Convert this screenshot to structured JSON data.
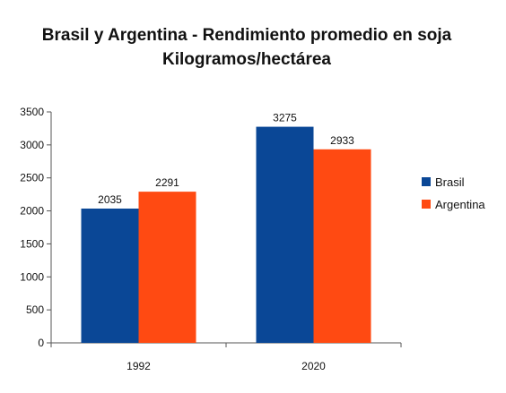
{
  "chart_data": {
    "type": "bar",
    "title": "Brasil y Argentina - Rendimiento promedio en soja",
    "subtitle": "Kilogramos/hectárea",
    "categories": [
      "1992",
      "2020"
    ],
    "series": [
      {
        "name": "Brasil",
        "color": "#0a4796",
        "values": [
          2035,
          3275
        ]
      },
      {
        "name": "Argentina",
        "color": "#ff4a12",
        "values": [
          2291,
          2933
        ]
      }
    ],
    "ylim": [
      0,
      3500
    ],
    "yticks": [
      "0",
      "500",
      "1000",
      "1500",
      "2000",
      "2500",
      "3000",
      "3500"
    ],
    "grid": false,
    "legend": "right"
  }
}
